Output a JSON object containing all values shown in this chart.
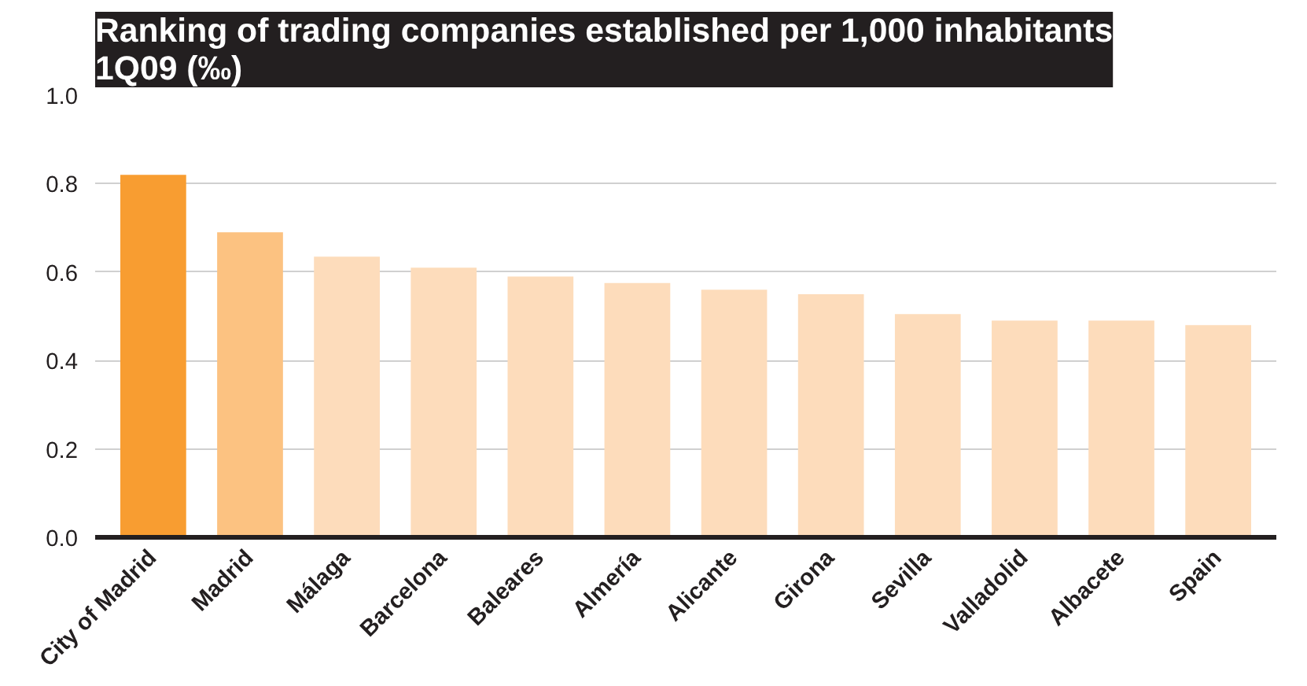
{
  "chart_data": {
    "type": "bar",
    "title": "Ranking of trading companies established per 1,000 inhabitants\n1Q09 (‰)",
    "categories": [
      "City of Madrid",
      "Madrid",
      "Málaga",
      "Barcelona",
      "Baleares",
      "Almería",
      "Alicante",
      "Girona",
      "Sevilla",
      "Valladolid",
      "Albacete",
      "Spain"
    ],
    "values": [
      0.82,
      0.69,
      0.635,
      0.61,
      0.59,
      0.575,
      0.56,
      0.55,
      0.505,
      0.49,
      0.49,
      0.48
    ],
    "colors": [
      "#f89d31",
      "#fcc281",
      "#fddcbb",
      "#fddcbb",
      "#fddcbb",
      "#fddcbb",
      "#fddcbb",
      "#fddcbb",
      "#fddcbb",
      "#fddcbb",
      "#fddcbb",
      "#fddcbb"
    ],
    "ylim": [
      0,
      1.0
    ],
    "yticks": [
      {
        "value": 0,
        "label": "0.0"
      },
      {
        "value": 0.2,
        "label": "0.2"
      },
      {
        "value": 0.4,
        "label": "0.4"
      },
      {
        "value": 0.6,
        "label": "0.6"
      },
      {
        "value": 0.8,
        "label": "0.8"
      },
      {
        "value": 1.0,
        "label": "1.0"
      }
    ],
    "grid": "y"
  }
}
